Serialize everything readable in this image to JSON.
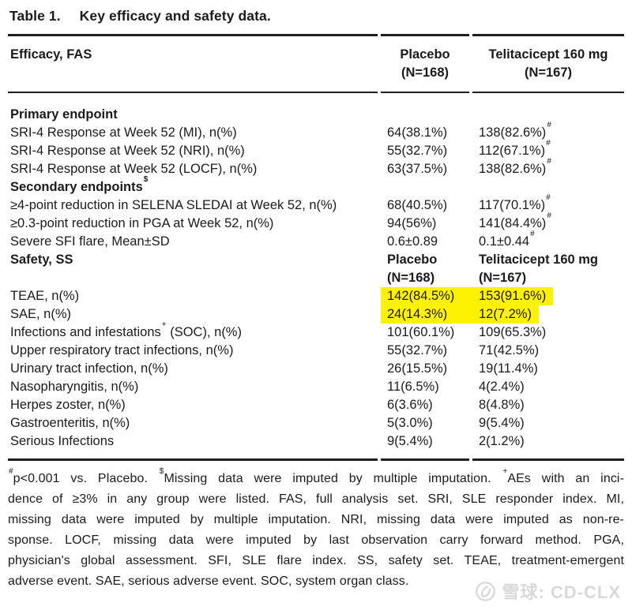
{
  "title": {
    "prefix": "Table 1.",
    "text": "Key efficacy and safety data."
  },
  "table": {
    "header": {
      "col1": "Efficacy, FAS",
      "col2_line1": "Placebo",
      "col2_line2": "(N=168)",
      "col3_line1": "Telitacicept 160 mg",
      "col3_line2": "(N=167)"
    },
    "rows": [
      {
        "label": "Primary endpoint",
        "bold": true
      },
      {
        "label": "SRI-4 Response at Week 52 (MI), n(%)",
        "col2": "64(38.1%)",
        "col3": "138(82.6%)",
        "col3_sup": "#"
      },
      {
        "label": "SRI-4 Response at Week 52 (NRI), n(%)",
        "col2": "55(32.7%)",
        "col3": "112(67.1%)",
        "col3_sup": "#"
      },
      {
        "label": "SRI-4 Response at Week 52 (LOCF), n(%)",
        "col2": "63(37.5%)",
        "col3": "138(82.6%)",
        "col3_sup": "#"
      },
      {
        "label": "Secondary endpoints",
        "label_sup": "$",
        "bold": true
      },
      {
        "label": "≥4-point reduction in SELENA SLEDAI at Week 52, n(%)",
        "col2": "68(40.5%)",
        "col3": "117(70.1%)",
        "col3_sup": "#"
      },
      {
        "label": "≥0.3-point reduction in PGA at Week 52, n(%)",
        "col2": "94(56%)",
        "col3": "141(84.4%)",
        "col3_sup": "#"
      },
      {
        "label": "Severe SFI flare, Mean±SD",
        "col2": "0.6±0.89",
        "col3": "0.1±0.44",
        "col3_sup": "#"
      },
      {
        "type": "subheader",
        "label": "Safety, SS",
        "bold": true,
        "col2_line1": "Placebo",
        "col2_line2": "(N=168)",
        "col3_line1": "Telitacicept 160 mg",
        "col3_line2": "(N=167)"
      },
      {
        "label": "TEAE, n(%)",
        "col2": "142(84.5%)",
        "col3": "153(91.6%)",
        "highlight": true
      },
      {
        "label": "SAE, n(%)",
        "col2": "24(14.3%)",
        "col3": "12(7.2%)",
        "highlight": true
      },
      {
        "label": "Infections and infestations",
        "label_sup": "+",
        "label_after": " (SOC), n(%)",
        "col2": "101(60.1%)",
        "col3": "109(65.3%)"
      },
      {
        "label": "Upper respiratory tract infections, n(%)",
        "col2": "55(32.7%)",
        "col3": "71(42.5%)"
      },
      {
        "label": "Urinary tract infection, n(%)",
        "col2": "26(15.5%)",
        "col3": "19(11.4%)"
      },
      {
        "label": "Nasopharyngitis, n(%)",
        "col2": "11(6.5%)",
        "col3": "4(2.4%)"
      },
      {
        "label": "Herpes zoster, n(%)",
        "col2": "6(3.6%)",
        "col3": "8(4.8%)"
      },
      {
        "label": "Gastroenteritis, n(%)",
        "col2": "5(3.0%)",
        "col3": "9(5.4%)"
      },
      {
        "label": "Serious Infections",
        "col2": "9(5.4%)",
        "col3": "2(1.2%)"
      }
    ]
  },
  "footnote": {
    "lines": [
      [
        {
          "sup": "#"
        },
        {
          "text": "p<0.001 vs. Placebo. "
        },
        {
          "sup": "$"
        },
        {
          "text": "Missing data were imputed by multiple imputation. "
        },
        {
          "sup": "+"
        },
        {
          "text": "AEs with an inci-"
        }
      ],
      [
        {
          "text": "dence of ≥3% in any group were listed. FAS, full analysis set. SRI, SLE responder index. MI,"
        }
      ],
      [
        {
          "text": "missing data were imputed by multiple imputation. NRI, missing data were imputed as non-re-"
        }
      ],
      [
        {
          "text": "sponse. LOCF, missing data were imputed by last observation carry forward method. PGA,"
        }
      ],
      [
        {
          "text": "physician's global assessment. SFI, SLE flare index. SS, safety set. TEAE, treatment-emergent"
        }
      ],
      [
        {
          "text": "adverse event. SAE, serious adverse event. SOC, system organ class."
        }
      ]
    ]
  },
  "watermark": {
    "text": "雪球: CD-CLX"
  },
  "colors": {
    "highlight": "#FFF200",
    "rule": "#1F1F1F",
    "text": "#1B1B1B",
    "watermark": "#D9D9D9"
  }
}
